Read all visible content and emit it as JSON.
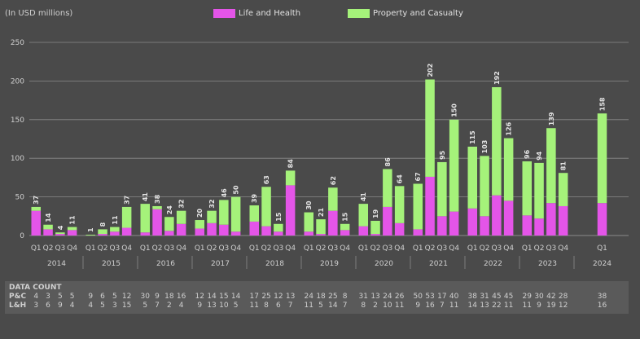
{
  "unit_label": "(In USD millions)",
  "legend": {
    "life_health": "Life and Health",
    "property_casualty": "Property and Casualty"
  },
  "colors": {
    "life_health": "#e455e8",
    "property_casualty": "#a5f27a",
    "background": "#4a4a4a",
    "grid": "#8a8a8a"
  },
  "chart_data": {
    "type": "bar",
    "stacked": true,
    "ylim": [
      0,
      250
    ],
    "yticks": [
      0,
      50,
      100,
      150,
      200,
      250
    ],
    "grid": true,
    "legend_position": "top",
    "years": [
      {
        "year": "2014",
        "quarters": [
          "Q1",
          "Q2",
          "Q3",
          "Q4"
        ]
      },
      {
        "year": "2015",
        "quarters": [
          "Q1",
          "Q2",
          "Q3",
          "Q4"
        ]
      },
      {
        "year": "2016",
        "quarters": [
          "Q1",
          "Q2",
          "Q3",
          "Q4"
        ]
      },
      {
        "year": "2017",
        "quarters": [
          "Q1",
          "Q2",
          "Q3",
          "Q4"
        ]
      },
      {
        "year": "2018",
        "quarters": [
          "Q1",
          "Q2",
          "Q3",
          "Q4"
        ]
      },
      {
        "year": "2019",
        "quarters": [
          "Q1",
          "Q2",
          "Q3",
          "Q4"
        ]
      },
      {
        "year": "2020",
        "quarters": [
          "Q1",
          "Q2",
          "Q3",
          "Q4"
        ]
      },
      {
        "year": "2021",
        "quarters": [
          "Q1",
          "Q2",
          "Q3",
          "Q4"
        ]
      },
      {
        "year": "2022",
        "quarters": [
          "Q1",
          "Q2",
          "Q3",
          "Q4"
        ]
      },
      {
        "year": "2023",
        "quarters": [
          "Q1",
          "Q2",
          "Q3",
          "Q4"
        ]
      },
      {
        "year": "2024",
        "quarters": [
          "Q1"
        ]
      }
    ],
    "series": [
      {
        "name": "Life and Health",
        "values": [
          32,
          8,
          2,
          7,
          0,
          2,
          5,
          10,
          4,
          34,
          6,
          15,
          9,
          16,
          14,
          5,
          18,
          12,
          5,
          65,
          5,
          2,
          32,
          7,
          12,
          2,
          37,
          16,
          8,
          76,
          25,
          31,
          35,
          25,
          52,
          45,
          26,
          22,
          42,
          38,
          42
        ]
      },
      {
        "name": "Property and Casualty",
        "values": [
          5,
          6,
          2,
          4,
          1,
          6,
          6,
          27,
          37,
          4,
          18,
          17,
          11,
          16,
          32,
          45,
          21,
          51,
          10,
          19,
          25,
          19,
          30,
          8,
          29,
          17,
          49,
          48,
          59,
          126,
          70,
          119,
          80,
          78,
          140,
          81,
          70,
          72,
          97,
          43,
          116
        ]
      }
    ],
    "totals": [
      37,
      14,
      4,
      11,
      1,
      8,
      11,
      37,
      41,
      38,
      24,
      32,
      20,
      32,
      46,
      50,
      39,
      63,
      15,
      84,
      30,
      21,
      62,
      15,
      41,
      19,
      86,
      64,
      67,
      202,
      95,
      150,
      115,
      103,
      192,
      126,
      96,
      94,
      139,
      81,
      158
    ],
    "data_count": {
      "title": "DATA COUNT",
      "rows": [
        {
          "label": "P&C",
          "values": [
            4,
            3,
            5,
            5,
            9,
            6,
            5,
            12,
            30,
            9,
            18,
            16,
            12,
            14,
            15,
            14,
            17,
            25,
            12,
            13,
            24,
            18,
            25,
            8,
            31,
            13,
            24,
            26,
            50,
            53,
            17,
            40,
            38,
            31,
            45,
            45,
            29,
            30,
            42,
            28,
            38
          ]
        },
        {
          "label": "L&H",
          "values": [
            3,
            6,
            9,
            4,
            4,
            5,
            3,
            15,
            5,
            7,
            2,
            4,
            9,
            13,
            10,
            5,
            11,
            8,
            6,
            7,
            11,
            5,
            14,
            7,
            8,
            2,
            10,
            11,
            9,
            16,
            7,
            11,
            14,
            13,
            22,
            11,
            11,
            9,
            19,
            12,
            16
          ]
        }
      ]
    }
  }
}
